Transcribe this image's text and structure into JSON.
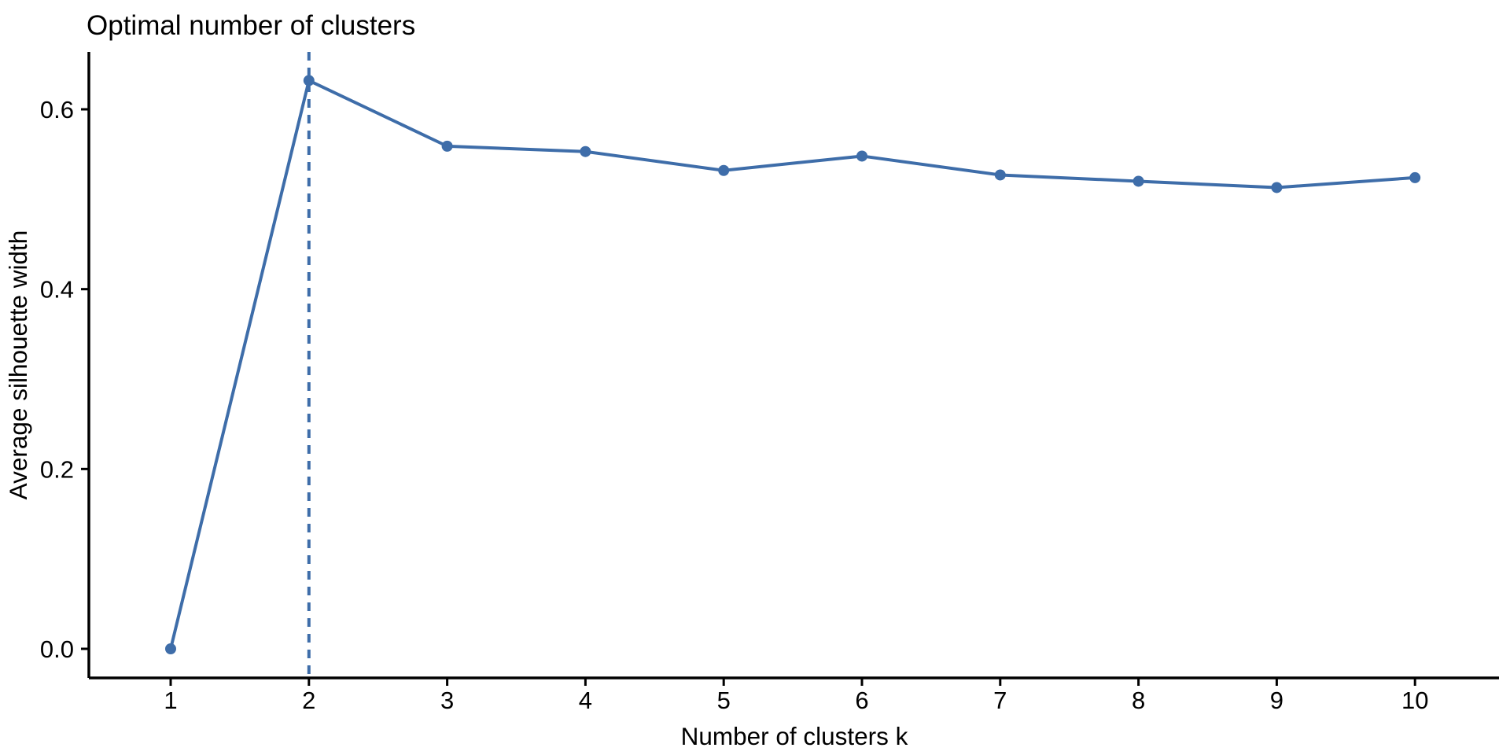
{
  "chart_data": {
    "type": "line",
    "title": "Optimal number of clusters",
    "xlabel": "Number of clusters k",
    "ylabel": "Average silhouette width",
    "x": [
      1,
      2,
      3,
      4,
      5,
      6,
      7,
      8,
      9,
      10
    ],
    "values": [
      0.0,
      0.632,
      0.559,
      0.553,
      0.532,
      0.548,
      0.527,
      0.52,
      0.513,
      0.524
    ],
    "series_name": "Average silhouette width",
    "xtick_labels": [
      "1",
      "2",
      "3",
      "4",
      "5",
      "6",
      "7",
      "8",
      "9",
      "10"
    ],
    "yticks": [
      0.0,
      0.2,
      0.4,
      0.6
    ],
    "ytick_labels": [
      "0.0",
      "0.2",
      "0.4",
      "0.6"
    ],
    "ylim": [
      0,
      0.66
    ],
    "vline_x": 2,
    "vline_style": "dashed",
    "grid": false,
    "legend": false,
    "marker": "circle",
    "line_color": "#3E6DA9",
    "axis_color": "#000000",
    "text_color": "#000000",
    "background_color": "#FFFFFF"
  }
}
